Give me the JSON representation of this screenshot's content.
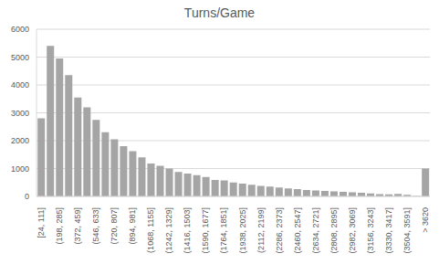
{
  "chart_data": {
    "type": "bar",
    "title": "Turns/Game",
    "categories": [
      "[24, 111]",
      null,
      "(198, 285]",
      null,
      "(372, 459]",
      null,
      "(546, 633]",
      null,
      "(720, 807]",
      null,
      "(894, 981]",
      null,
      "(1068, 1155]",
      null,
      "(1242, 1329]",
      null,
      "(1416, 1503]",
      null,
      "(1590, 1677]",
      null,
      "(1764, 1851]",
      null,
      "(1938, 2025]",
      null,
      "(2112, 2199]",
      null,
      "(2286, 2373]",
      null,
      "(2460, 2547]",
      null,
      "(2634, 2721]",
      null,
      "(2808, 2895]",
      null,
      "(2982, 3069]",
      null,
      "(3156, 3243]",
      null,
      "(3330, 3417]",
      null,
      "(3504, 3591]",
      null,
      "> 3620"
    ],
    "values": [
      2800,
      5400,
      4950,
      4350,
      3550,
      3200,
      2750,
      2300,
      2050,
      1800,
      1620,
      1400,
      1180,
      1100,
      1000,
      880,
      820,
      760,
      700,
      590,
      570,
      500,
      460,
      420,
      380,
      350,
      320,
      290,
      260,
      230,
      210,
      200,
      180,
      160,
      150,
      130,
      110,
      80,
      70,
      90,
      60,
      20,
      1000
    ],
    "color": "#a5a5a5",
    "ylim": [
      0,
      6000
    ],
    "yticks": [
      0,
      1000,
      2000,
      3000,
      4000,
      5000,
      6000
    ],
    "grid": true
  }
}
